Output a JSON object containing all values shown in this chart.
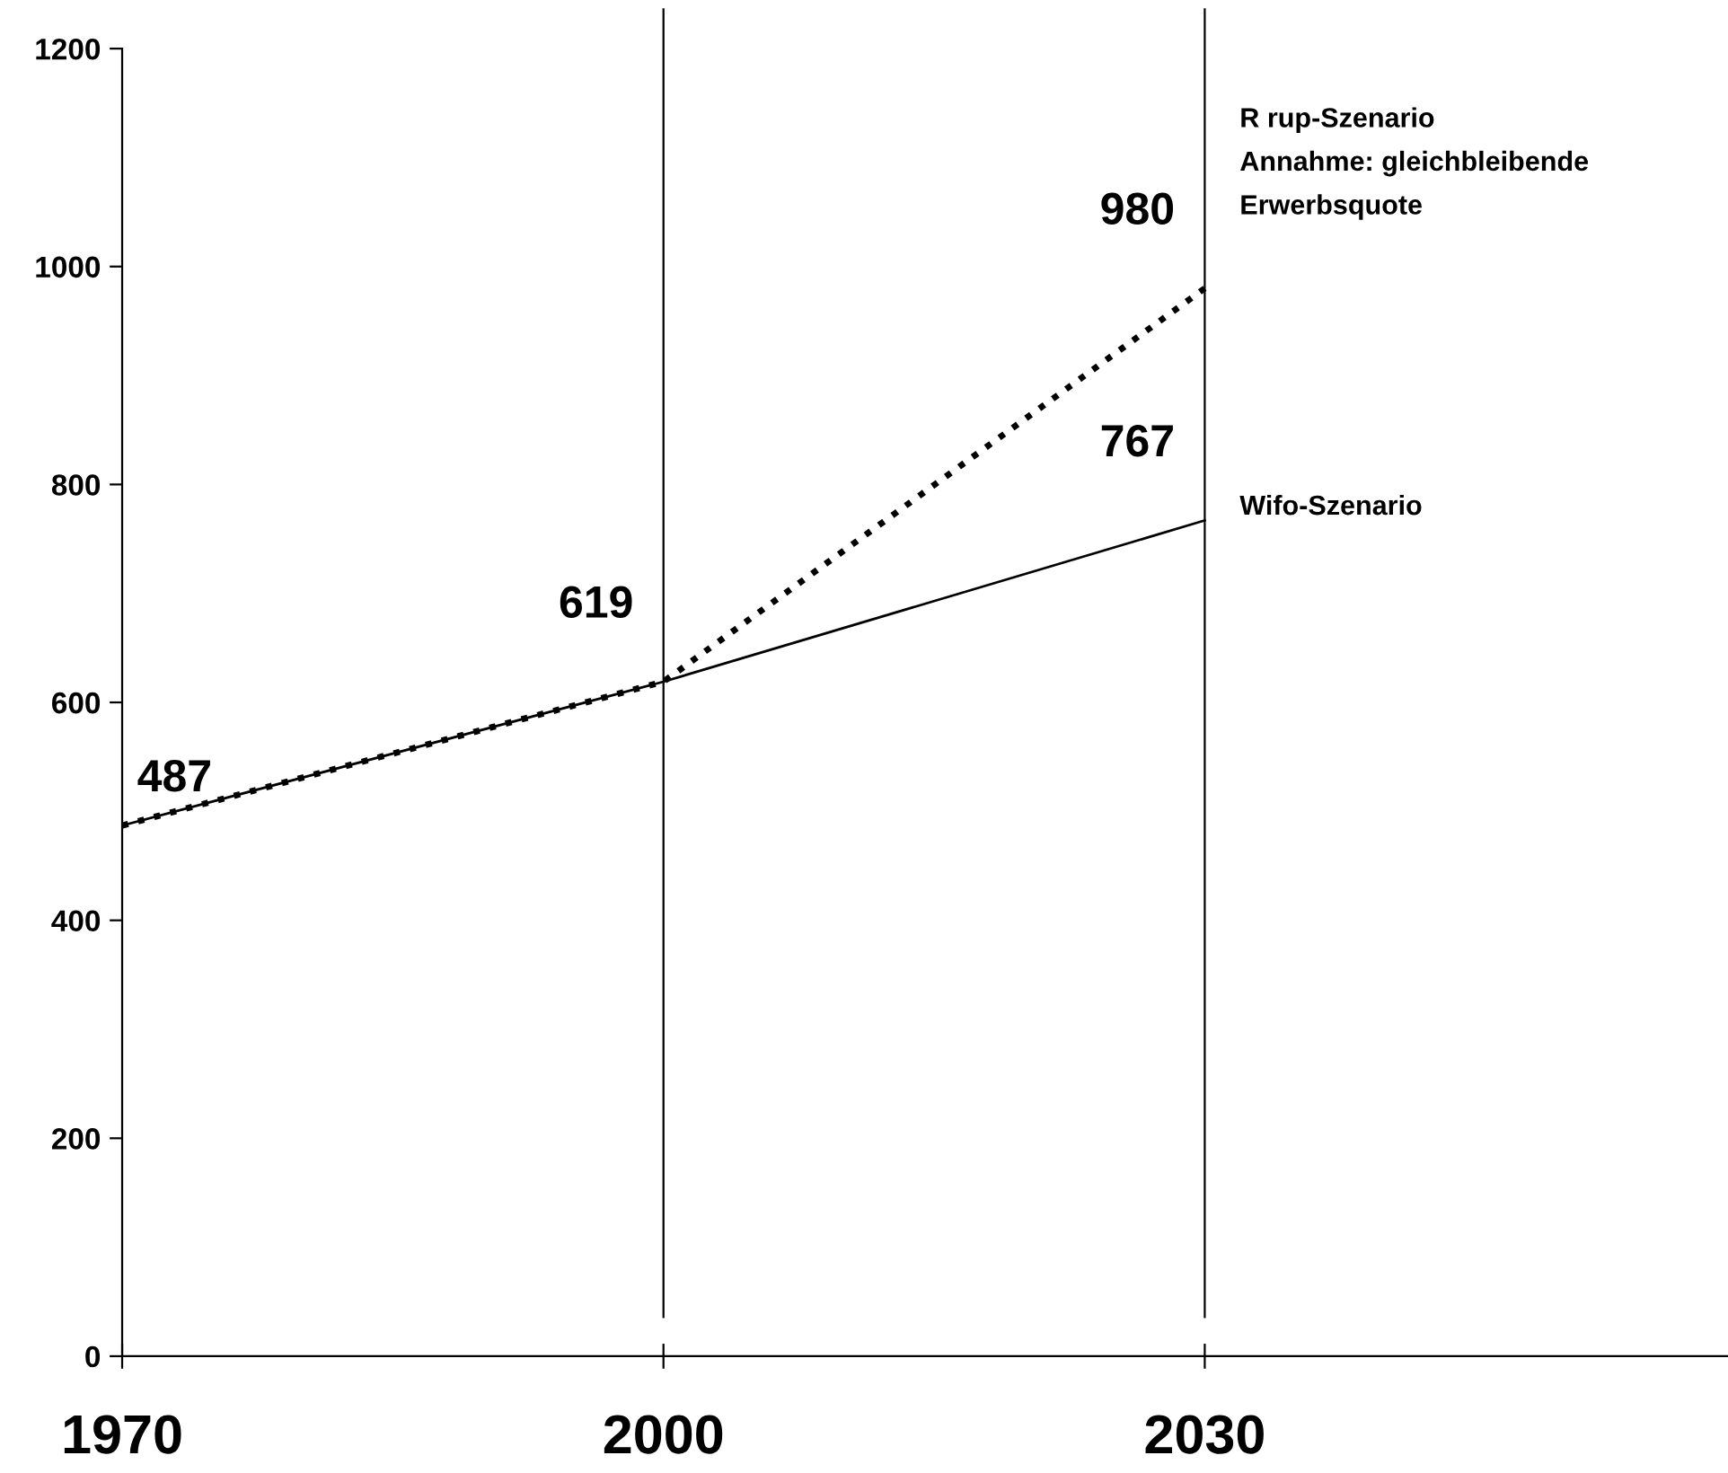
{
  "chart_data": {
    "type": "line",
    "x": [
      1970,
      2000,
      2030
    ],
    "series": [
      {
        "name": "Wifo-Szenario",
        "color": "#000000",
        "line_style": "solid",
        "values": [
          487,
          619,
          767
        ],
        "value_labels": [
          "487",
          "619",
          "767"
        ]
      },
      {
        "name": "R rup-Szenario\nAnnahme: gleichbleibende\nErwerbsquote",
        "color": "#000000",
        "line_style": "dotted",
        "values": [
          487,
          619,
          980
        ],
        "value_labels": [
          null,
          null,
          "980"
        ]
      }
    ],
    "xlim": [
      1970,
      2059
    ],
    "xticks": [
      1970,
      2000,
      2030
    ],
    "ylim": [
      0,
      1200
    ],
    "yticks": [
      0,
      200,
      400,
      600,
      800,
      1000,
      1200
    ],
    "ref_lines": [
      {
        "axis": "x",
        "value": 2000,
        "color": "#000000"
      },
      {
        "axis": "x",
        "value": 2030,
        "color": "#000000"
      }
    ],
    "grid": false,
    "legend": false,
    "marker": "none"
  }
}
